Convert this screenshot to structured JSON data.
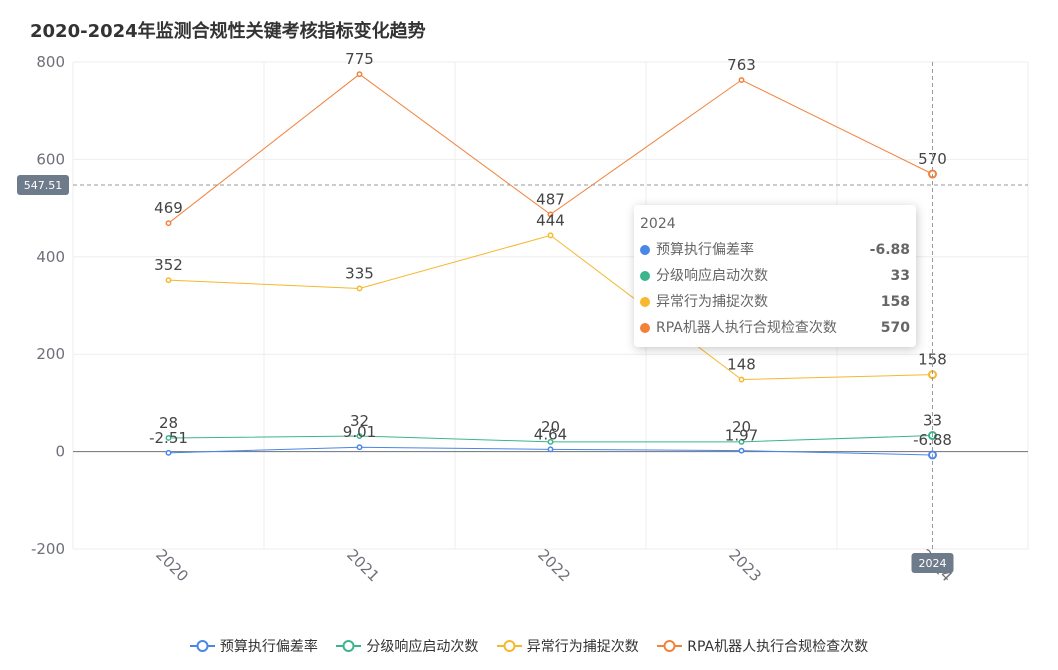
{
  "chart_data": {
    "type": "line",
    "title": "2020-2024年监测合规性关键考核指标变化趋势",
    "categories": [
      "2020",
      "2021",
      "2022",
      "2023",
      "2024"
    ],
    "ylim": [
      -200,
      800
    ],
    "yticks": [
      -200,
      0,
      200,
      400,
      600,
      800
    ],
    "grid": true,
    "legend_position": "bottom",
    "series": [
      {
        "name": "预算执行偏差率",
        "color": "#4a86e8",
        "values": [
          -2.51,
          9.01,
          4.64,
          1.97,
          -6.88
        ],
        "labels": [
          "-2.51",
          "9.01",
          "4.64",
          "1.97",
          "-6.88"
        ]
      },
      {
        "name": "分级响应启动次数",
        "color": "#3bb58d",
        "values": [
          28,
          32,
          20,
          20,
          33
        ],
        "labels": [
          "28",
          "32",
          "20",
          "20",
          "33"
        ]
      },
      {
        "name": "异常行为捕捉次数",
        "color": "#f5b82e",
        "values": [
          352,
          335,
          444,
          148,
          158
        ],
        "labels": [
          "352",
          "335",
          "444",
          "148",
          "158"
        ]
      },
      {
        "name": "RPA机器人执行合规检查次数",
        "color": "#f2813a",
        "values": [
          469,
          775,
          487,
          763,
          570
        ],
        "labels": [
          "469",
          "775",
          "487",
          "763",
          "570"
        ]
      }
    ],
    "crosshair": {
      "x_category": "2024",
      "y_value": 547.51,
      "x_label": "2024",
      "y_label": "547.51"
    }
  },
  "tooltip": {
    "header": "2024",
    "rows": [
      {
        "name": "预算执行偏差率",
        "value": "-6.88",
        "color": "#4a86e8"
      },
      {
        "name": "分级响应启动次数",
        "value": "33",
        "color": "#3bb58d"
      },
      {
        "name": "异常行为捕捉次数",
        "value": "158",
        "color": "#f5b82e"
      },
      {
        "name": "RPA机器人执行合规检查次数",
        "value": "570",
        "color": "#f2813a"
      }
    ]
  },
  "legend": [
    {
      "name": "预算执行偏差率",
      "color": "#4a86e8"
    },
    {
      "name": "分级响应启动次数",
      "color": "#3bb58d"
    },
    {
      "name": "异常行为捕捉次数",
      "color": "#f5b82e"
    },
    {
      "name": "RPA机器人执行合规检查次数",
      "color": "#f2813a"
    }
  ]
}
